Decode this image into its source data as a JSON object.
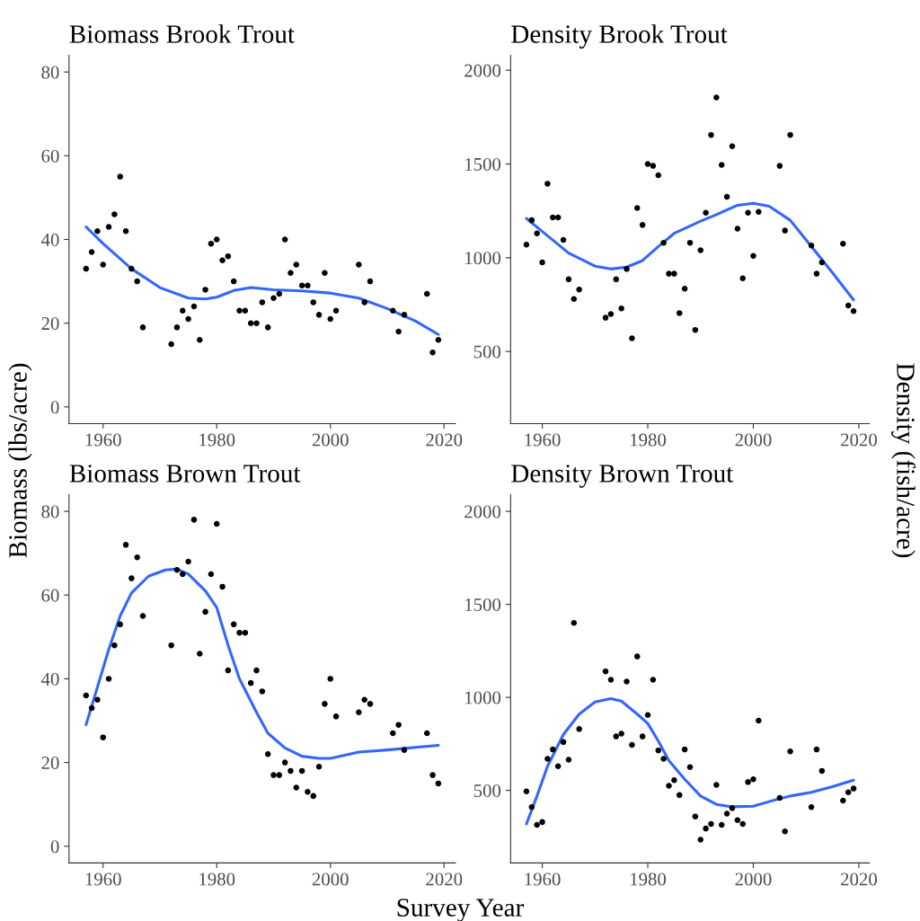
{
  "chart_data": [
    {
      "type": "scatter",
      "title": "Biomass Brook Trout",
      "ylabel": "Biomass (lbs/acre)",
      "xlim": [
        1954,
        2022
      ],
      "xticks": [
        1960,
        1980,
        2000,
        2020
      ],
      "ylim": [
        -4,
        84
      ],
      "yticks": [
        0,
        20,
        40,
        60,
        80
      ],
      "grid": false,
      "series": [
        {
          "marker": "circle",
          "color": "#000000",
          "x": [
            1957,
            1958,
            1959,
            1960,
            1961,
            1962,
            1963,
            1964,
            1965,
            1966,
            1967,
            1972,
            1973,
            1974,
            1975,
            1976,
            1977,
            1978,
            1979,
            1980,
            1981,
            1982,
            1983,
            1984,
            1985,
            1986,
            1987,
            1988,
            1989,
            1990,
            1991,
            1992,
            1993,
            1994,
            1995,
            1996,
            1997,
            1998,
            1999,
            2000,
            2001,
            2005,
            2006,
            2007,
            2011,
            2012,
            2013,
            2017,
            2018,
            2019
          ],
          "values": [
            33,
            37,
            42,
            34,
            43,
            46,
            55,
            42,
            33,
            30,
            19,
            15,
            19,
            23,
            21,
            24,
            16,
            28,
            39,
            40,
            35,
            36,
            30,
            23,
            23,
            20,
            20,
            25,
            19,
            26,
            27,
            40,
            32,
            34,
            29,
            29,
            25,
            22,
            32,
            21,
            23,
            34,
            25,
            30,
            23,
            18,
            22,
            27,
            13,
            16
          ]
        },
        {
          "type": "line",
          "color": "#3366ff",
          "x": [
            1957,
            1960,
            1965,
            1970,
            1975,
            1978,
            1980,
            1983,
            1986,
            1990,
            1995,
            2000,
            2005,
            2010,
            2015,
            2019
          ],
          "values": [
            43,
            39,
            33,
            28.5,
            26,
            25.8,
            26.2,
            27.8,
            28.5,
            28,
            27.7,
            27.2,
            26,
            23.5,
            20.5,
            17.3
          ]
        }
      ]
    },
    {
      "type": "scatter",
      "title": "Density Brook Trout",
      "ylabel": "Density (fish/acre)",
      "xlim": [
        1954,
        2022
      ],
      "xticks": [
        1960,
        1980,
        2000,
        2020
      ],
      "ylim": [
        115,
        2080
      ],
      "yticks": [
        500,
        1000,
        1500,
        2000
      ],
      "grid": false,
      "series": [
        {
          "marker": "circle",
          "color": "#000000",
          "x": [
            1957,
            1958,
            1959,
            1960,
            1961,
            1962,
            1963,
            1964,
            1965,
            1966,
            1967,
            1972,
            1973,
            1974,
            1975,
            1976,
            1977,
            1978,
            1979,
            1980,
            1981,
            1982,
            1983,
            1984,
            1985,
            1986,
            1987,
            1988,
            1989,
            1990,
            1991,
            1992,
            1993,
            1994,
            1995,
            1996,
            1997,
            1998,
            1999,
            2000,
            2001,
            2005,
            2006,
            2007,
            2011,
            2012,
            2013,
            2017,
            2018,
            2019
          ],
          "values": [
            1070,
            1200,
            1130,
            975,
            1395,
            1215,
            1215,
            1095,
            885,
            780,
            830,
            680,
            700,
            885,
            730,
            940,
            570,
            1265,
            1175,
            1500,
            1490,
            1440,
            1080,
            915,
            915,
            705,
            835,
            1080,
            615,
            1040,
            1240,
            1655,
            1855,
            1495,
            1325,
            1595,
            1155,
            890,
            1240,
            1010,
            1245,
            1490,
            1145,
            1655,
            1065,
            915,
            975,
            1075,
            745,
            715
          ]
        },
        {
          "type": "line",
          "color": "#3366ff",
          "x": [
            1957,
            1960,
            1965,
            1970,
            1973,
            1976,
            1979,
            1982,
            1985,
            1990,
            1993,
            1997,
            2000,
            2003,
            2007,
            2011,
            2015,
            2019
          ],
          "values": [
            1210,
            1140,
            1025,
            955,
            940,
            950,
            985,
            1060,
            1130,
            1195,
            1230,
            1280,
            1290,
            1275,
            1200,
            1060,
            920,
            775
          ]
        }
      ]
    },
    {
      "type": "scatter",
      "title": "Biomass Brown Trout",
      "xlabel": "Survey Year",
      "xlim": [
        1954,
        2022
      ],
      "xticks": [
        1960,
        1980,
        2000,
        2020
      ],
      "ylim": [
        -4,
        84
      ],
      "yticks": [
        0,
        20,
        40,
        60,
        80
      ],
      "grid": false,
      "series": [
        {
          "marker": "circle",
          "color": "#000000",
          "x": [
            1957,
            1958,
            1959,
            1960,
            1961,
            1962,
            1963,
            1964,
            1965,
            1966,
            1967,
            1972,
            1973,
            1974,
            1975,
            1976,
            1977,
            1978,
            1979,
            1980,
            1981,
            1982,
            1983,
            1984,
            1985,
            1986,
            1987,
            1988,
            1989,
            1990,
            1991,
            1992,
            1993,
            1994,
            1995,
            1996,
            1997,
            1998,
            1999,
            2000,
            2001,
            2005,
            2006,
            2007,
            2011,
            2012,
            2013,
            2017,
            2018,
            2019
          ],
          "values": [
            36,
            33,
            35,
            26,
            40,
            48,
            53,
            72,
            64,
            69,
            55,
            48,
            66,
            65,
            68,
            78,
            46,
            56,
            65,
            77,
            62,
            42,
            53,
            51,
            51,
            39,
            42,
            37,
            22,
            17,
            17,
            20,
            18,
            14,
            18,
            13,
            12,
            19,
            34,
            40,
            31,
            32,
            35,
            34,
            27,
            29,
            23,
            27,
            17,
            15
          ]
        },
        {
          "type": "line",
          "color": "#3366ff",
          "x": [
            1957,
            1959,
            1961,
            1963,
            1965,
            1968,
            1971,
            1973,
            1975,
            1978,
            1980,
            1982,
            1984,
            1987,
            1989,
            1992,
            1995,
            1998,
            2000,
            2005,
            2010,
            2015,
            2019
          ],
          "values": [
            29,
            38,
            47,
            55,
            60.5,
            64.5,
            66,
            66.2,
            65,
            61,
            57,
            48,
            40,
            32,
            27,
            23.5,
            21.5,
            21,
            21,
            22.5,
            23,
            23.6,
            24.1
          ]
        }
      ]
    },
    {
      "type": "scatter",
      "title": "Density Brown Trout",
      "xlim": [
        1954,
        2022
      ],
      "xticks": [
        1960,
        1980,
        2000,
        2020
      ],
      "ylim": [
        110,
        2090
      ],
      "yticks": [
        500,
        1000,
        1500,
        2000
      ],
      "grid": false,
      "series": [
        {
          "marker": "circle",
          "color": "#000000",
          "x": [
            1957,
            1958,
            1959,
            1960,
            1961,
            1962,
            1963,
            1964,
            1965,
            1966,
            1967,
            1972,
            1973,
            1974,
            1975,
            1976,
            1977,
            1978,
            1979,
            1980,
            1981,
            1982,
            1983,
            1984,
            1985,
            1986,
            1987,
            1988,
            1989,
            1990,
            1991,
            1992,
            1993,
            1994,
            1995,
            1996,
            1997,
            1998,
            1999,
            2000,
            2001,
            2005,
            2006,
            2007,
            2011,
            2012,
            2013,
            2017,
            2018,
            2019
          ],
          "values": [
            495,
            410,
            315,
            330,
            670,
            720,
            630,
            760,
            665,
            1400,
            830,
            1140,
            1095,
            790,
            805,
            1085,
            745,
            1220,
            790,
            905,
            1095,
            715,
            670,
            525,
            555,
            475,
            720,
            625,
            360,
            235,
            295,
            320,
            530,
            315,
            375,
            405,
            340,
            320,
            545,
            560,
            875,
            460,
            280,
            710,
            410,
            720,
            605,
            445,
            490,
            510
          ]
        },
        {
          "type": "line",
          "color": "#3366ff",
          "x": [
            1957,
            1959,
            1961,
            1964,
            1967,
            1970,
            1973,
            1975,
            1978,
            1980,
            1982,
            1984,
            1987,
            1990,
            1993,
            1996,
            2000,
            2003,
            2007,
            2011,
            2015,
            2019
          ],
          "values": [
            320,
            470,
            630,
            800,
            910,
            975,
            993,
            980,
            910,
            860,
            765,
            660,
            560,
            470,
            425,
            412,
            415,
            440,
            470,
            490,
            520,
            555
          ]
        }
      ]
    }
  ]
}
